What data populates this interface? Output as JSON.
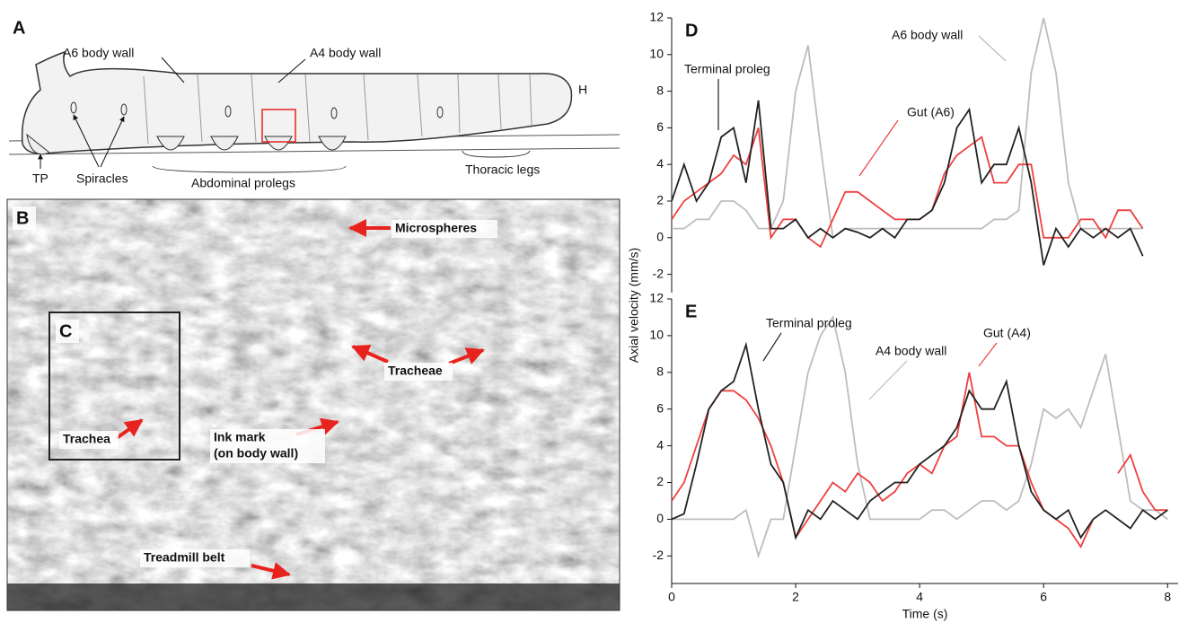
{
  "panels": {
    "A": {
      "label": "A",
      "callouts": [
        "A6 body wall",
        "A4 body wall",
        "H",
        "TP",
        "Spiracles",
        "Abdominal prolegs",
        "Thoracic legs"
      ]
    },
    "B": {
      "label": "B",
      "callouts": [
        "Microspheres",
        "Tracheae",
        "Ink mark",
        "(on body wall)",
        "Treadmill belt"
      ]
    },
    "C": {
      "label": "C",
      "callouts": [
        "Trachea"
      ]
    }
  },
  "chart_data": [
    {
      "type": "line",
      "label": "D",
      "ylabel": "Axial velocity (mm/s)",
      "x": [
        0,
        0.2,
        0.4,
        0.6,
        0.8,
        1.0,
        1.2,
        1.4,
        1.6,
        1.8,
        2.0,
        2.2,
        2.4,
        2.6,
        2.8,
        3.0,
        3.2,
        3.4,
        3.6,
        3.8,
        4.0,
        4.2,
        4.4,
        4.6,
        4.8,
        5.0,
        5.2,
        5.4,
        5.6,
        5.8,
        6.0,
        6.2,
        6.4,
        6.6,
        6.8,
        7.0,
        7.2,
        7.4,
        7.6
      ],
      "series": [
        {
          "name": "A6 body wall",
          "color": "#bdbdbd",
          "values": [
            0.5,
            0.5,
            1,
            1,
            2,
            2,
            1.5,
            0.5,
            0.5,
            2,
            8,
            10.5,
            5,
            0,
            0.5,
            0.5,
            0.5,
            0.5,
            0.5,
            0.5,
            0.5,
            0.5,
            0.5,
            0.5,
            0.5,
            0.5,
            1,
            1,
            1.5,
            9,
            12,
            9,
            3,
            0.5,
            0.5,
            0.5,
            0.5,
            0.5,
            0.5
          ]
        },
        {
          "name": "Gut (A6)",
          "color": "#ee4040",
          "values": [
            1,
            2,
            2.5,
            3,
            3.5,
            4.5,
            4,
            6,
            0,
            1,
            1,
            0,
            -0.5,
            1,
            2.5,
            2.5,
            2,
            1.5,
            1,
            1,
            1,
            1.5,
            3.5,
            4.5,
            5,
            5.5,
            3,
            3,
            4,
            4,
            0,
            0,
            0,
            1,
            1,
            0,
            1.5,
            1.5,
            0.5
          ]
        },
        {
          "name": "Terminal proleg",
          "color": "#222222",
          "values": [
            2,
            4,
            2,
            3,
            5.5,
            6,
            3,
            7.5,
            0.5,
            0.5,
            1,
            0,
            0.5,
            0,
            0.5,
            0.3,
            0,
            0.5,
            0,
            1,
            1,
            1.5,
            3,
            6,
            7,
            3,
            4,
            4,
            6,
            3,
            -1.5,
            0.5,
            -0.5,
            0.5,
            0,
            0.5,
            0,
            0.5,
            -1
          ]
        }
      ],
      "xlim": [
        0,
        8.17
      ],
      "ylim": [
        -3,
        12
      ],
      "yticks": [
        -2,
        0,
        2,
        4,
        6,
        8,
        10,
        12
      ]
    },
    {
      "type": "line",
      "label": "E",
      "xlabel": "Time (s)",
      "x": [
        0,
        0.2,
        0.4,
        0.6,
        0.8,
        1.0,
        1.2,
        1.4,
        1.6,
        1.8,
        2.0,
        2.2,
        2.4,
        2.6,
        2.8,
        3.0,
        3.2,
        3.4,
        3.6,
        3.8,
        4.0,
        4.2,
        4.4,
        4.6,
        4.8,
        5.0,
        5.2,
        5.4,
        5.6,
        5.8,
        6.0,
        6.2,
        6.4,
        6.6,
        6.8,
        7.0,
        7.2,
        7.4,
        7.6,
        7.8,
        8.0
      ],
      "series": [
        {
          "name": "A4 body wall",
          "color": "#bdbdbd",
          "values": [
            0,
            0,
            0,
            0,
            0,
            0,
            0.5,
            -2,
            0,
            0,
            4,
            8,
            10,
            11,
            8,
            3,
            0,
            0,
            0,
            0,
            0,
            0.5,
            0.5,
            0,
            0.5,
            1,
            1,
            0.5,
            1,
            3,
            6,
            5.5,
            6,
            5,
            7,
            9,
            5,
            1,
            0.5,
            0.5,
            0
          ]
        },
        {
          "name": "Gut (A4)",
          "color": "#ee4040",
          "values": [
            1,
            2,
            4,
            6,
            7,
            7,
            6.5,
            5.5,
            4,
            2,
            -1,
            0,
            1,
            2,
            1.5,
            2.5,
            2,
            1,
            1.5,
            2.5,
            3,
            2.5,
            4,
            4.5,
            8,
            4.5,
            4.5,
            4,
            4,
            2,
            0.5,
            0,
            -0.5,
            -1.5,
            0,
            null,
            2.5,
            3.5,
            1.5,
            0.5,
            0.5
          ]
        },
        {
          "name": "Terminal proleg",
          "color": "#222222",
          "values": [
            0,
            0.3,
            3,
            6,
            7,
            7.5,
            9.5,
            6,
            3,
            2,
            -1,
            0.5,
            0,
            1,
            0.5,
            0,
            1,
            1.5,
            2,
            2,
            3,
            3.5,
            4,
            5,
            7,
            6,
            6,
            7.5,
            4,
            1.5,
            0.5,
            0,
            0.5,
            -1,
            0,
            0.5,
            0,
            -0.5,
            0.5,
            0,
            0.5
          ]
        }
      ],
      "xlim": [
        0,
        8.17
      ],
      "ylim": [
        -3.5,
        12
      ],
      "yticks": [
        -2,
        0,
        2,
        4,
        6,
        8,
        10,
        12
      ],
      "xticks": [
        0,
        2,
        4,
        6,
        8
      ]
    }
  ]
}
